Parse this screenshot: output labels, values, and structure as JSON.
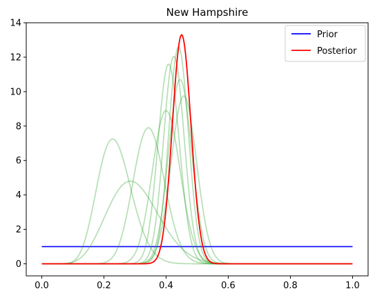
{
  "chart_data": {
    "type": "line",
    "title": "New Hampshire",
    "xlabel": "",
    "ylabel": "",
    "xlim": [
      -0.05,
      1.05
    ],
    "ylim": [
      -0.7,
      14
    ],
    "xticks": [
      0.0,
      0.2,
      0.4,
      0.6,
      0.8,
      1.0
    ],
    "xtick_labels": [
      "0.0",
      "0.2",
      "0.4",
      "0.6",
      "0.8",
      "1.0"
    ],
    "yticks": [
      0,
      2,
      4,
      6,
      8,
      10,
      12,
      14
    ],
    "ytick_labels": [
      "0",
      "2",
      "4",
      "6",
      "8",
      "10",
      "12",
      "14"
    ],
    "grid": false,
    "legend": {
      "position": "top-right",
      "entries": [
        {
          "label": "Prior",
          "color": "#0000ff"
        },
        {
          "label": "Posterior",
          "color": "#ff0000"
        }
      ]
    },
    "prior": {
      "value": 1.0,
      "x_range": [
        0,
        1
      ],
      "color": "#0000ff"
    },
    "posterior": {
      "mode": 0.45,
      "peak": 13.3,
      "color": "#ff0000"
    },
    "sample_curves": {
      "color": "#2ca02c",
      "opacity": 0.35,
      "curves": [
        {
          "mode": 0.228,
          "peak": 7.25
        },
        {
          "mode": 0.285,
          "peak": 4.8
        },
        {
          "mode": 0.343,
          "peak": 7.9
        },
        {
          "mode": 0.4,
          "peak": 8.9
        },
        {
          "mode": 0.408,
          "peak": 11.6
        },
        {
          "mode": 0.425,
          "peak": 12.05
        },
        {
          "mode": 0.44,
          "peak": 12.6
        },
        {
          "mode": 0.445,
          "peak": 10.7
        },
        {
          "mode": 0.457,
          "peak": 9.75
        }
      ]
    }
  }
}
